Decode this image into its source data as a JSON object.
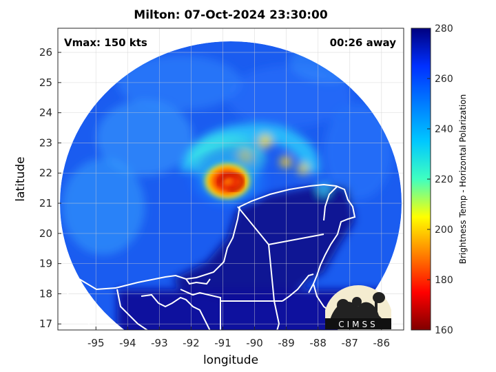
{
  "title": "Milton: 07-Oct-2024 23:30:00",
  "vmax_label": "Vmax: 150 kts",
  "away_label": "00:26 away",
  "xlabel": "longitude",
  "ylabel": "latitude",
  "colorbar": {
    "label": "Brightness Temp - Horizontal Polarization",
    "min": 160,
    "max": 280,
    "ticks": [
      "280",
      "260",
      "240",
      "220",
      "200",
      "180",
      "160"
    ]
  },
  "logo_text": "CIMSS",
  "chart_data": {
    "type": "heatmap",
    "xticks": [
      "-95",
      "-94",
      "-93",
      "-92",
      "-91",
      "-90",
      "-89",
      "-88",
      "-87",
      "-86"
    ],
    "yticks": [
      "26",
      "25",
      "24",
      "23",
      "22",
      "21",
      "20",
      "19",
      "18",
      "17"
    ],
    "xlim": [
      -96.2,
      -85.3
    ],
    "ylim": [
      16.8,
      26.8
    ],
    "grid": true,
    "storm_center": [
      -90.8,
      21.85
    ]
  }
}
